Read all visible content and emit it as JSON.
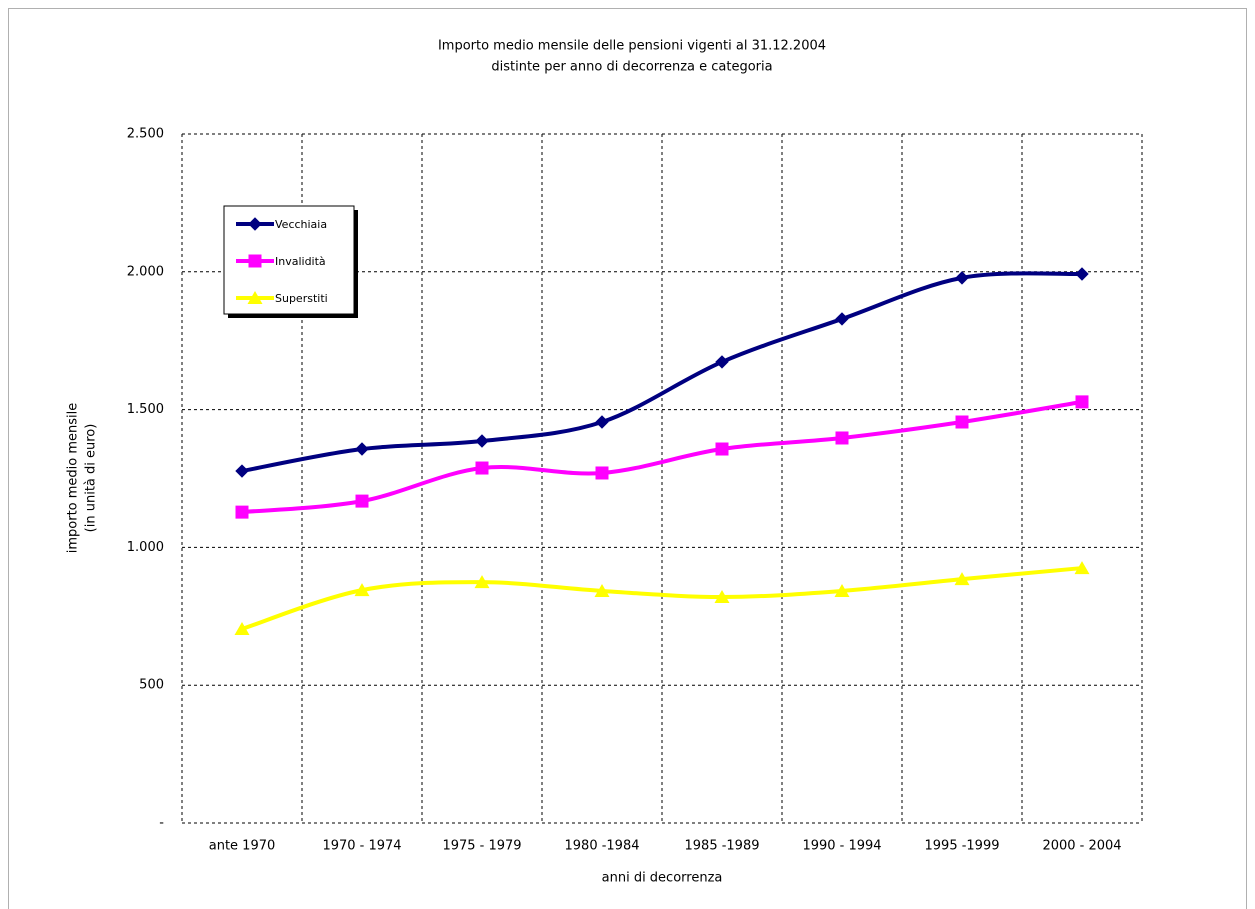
{
  "chart_data": {
    "type": "line",
    "title": "Importo medio mensile delle pensioni vigenti al 31.12.2004",
    "subtitle": "distinte per anno di decorrenza e categoria",
    "xlabel": "anni di decorrenza",
    "ylabel": [
      "importo medio mensile",
      "(in unità di euro)"
    ],
    "categories": [
      "ante 1970",
      "1970 - 1974",
      "1975 - 1979",
      "1980 -1984",
      "1985 -1989",
      "1990 - 1994",
      "1995 -1999",
      "2000 - 2004"
    ],
    "series": [
      {
        "name": "Vecchiaia",
        "color": "#000080",
        "marker": "diamond",
        "values": [
          1277,
          1357,
          1386,
          1455,
          1673,
          1829,
          1978,
          1992
        ]
      },
      {
        "name": "Invalidità",
        "color": "#ff00ff",
        "marker": "square",
        "values": [
          1128,
          1168,
          1288,
          1270,
          1357,
          1397,
          1455,
          1528
        ]
      },
      {
        "name": "Superstiti",
        "color": "#ffff00",
        "marker": "triangle",
        "values": [
          704,
          845,
          874,
          842,
          820,
          842,
          885,
          925
        ]
      }
    ],
    "ylim": [
      0,
      2500
    ],
    "yticks": [
      {
        "value": 0,
        "label": "-"
      },
      500,
      {
        "value": 1000,
        "label": "1.000"
      },
      {
        "value": 1500,
        "label": "1.500"
      },
      {
        "value": 2000,
        "label": "2.000"
      },
      {
        "value": 2500,
        "label": "2.500"
      }
    ],
    "grid": true,
    "smooth": true,
    "legend": "upper left"
  }
}
